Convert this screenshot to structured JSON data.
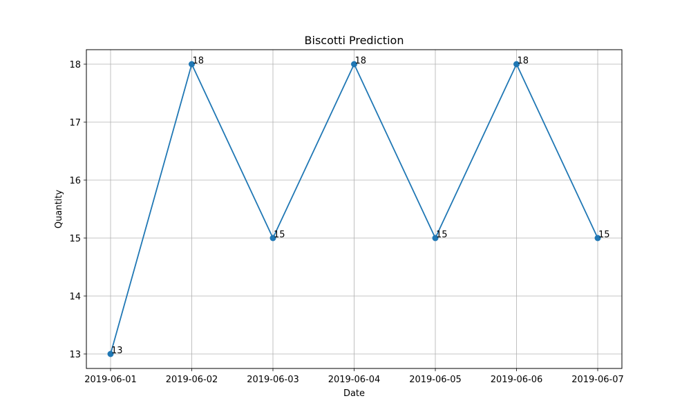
{
  "chart_data": {
    "type": "line",
    "title": "Biscotti Prediction",
    "xlabel": "Date",
    "ylabel": "Quantity",
    "categories": [
      "2019-06-01",
      "2019-06-02",
      "2019-06-03",
      "2019-06-04",
      "2019-06-05",
      "2019-06-06",
      "2019-06-07"
    ],
    "series": [
      {
        "values": [
          13,
          18,
          15,
          18,
          15,
          18,
          15
        ],
        "color": "#1f77b4",
        "marker": "circle"
      }
    ],
    "ylim": [
      12.75,
      18.25
    ],
    "yticks": [
      13,
      14,
      15,
      16,
      17,
      18
    ],
    "grid": true,
    "data_labels": true
  }
}
